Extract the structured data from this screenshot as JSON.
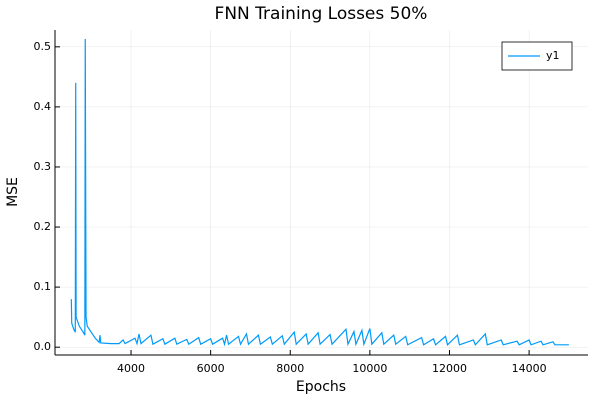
{
  "chart_data": {
    "type": "line",
    "title": "FNN Training Losses 50%",
    "xlabel": "Epochs",
    "ylabel": "MSE",
    "x": [
      2500,
      2510,
      2560,
      2600,
      2610,
      2620,
      2700,
      2800,
      2840,
      2850,
      2870,
      2900,
      3000,
      3100,
      3200,
      3220,
      3240,
      3500,
      3700,
      3800,
      3850,
      4100,
      4150,
      4200,
      4250,
      4500,
      4550,
      4800,
      4850,
      5100,
      5150,
      5400,
      5450,
      5700,
      5750,
      6000,
      6050,
      6300,
      6350,
      6400,
      6450,
      6700,
      6750,
      6900,
      6950,
      7200,
      7250,
      7500,
      7550,
      7800,
      7850,
      8100,
      8150,
      8400,
      8450,
      8700,
      8750,
      9000,
      9050,
      9400,
      9450,
      9600,
      9650,
      9800,
      9850,
      10000,
      10050,
      10300,
      10350,
      10600,
      10650,
      10900,
      10950,
      11300,
      11350,
      11600,
      11650,
      11900,
      11950,
      12200,
      12250,
      12600,
      12650,
      12900,
      12950,
      13300,
      13350,
      13700,
      13750,
      14000,
      14050,
      14300,
      14350,
      14600,
      14650,
      15000
    ],
    "series": [
      {
        "name": "y1",
        "color": "#009af9",
        "values": [
          0.08,
          0.04,
          0.03,
          0.025,
          0.44,
          0.05,
          0.035,
          0.025,
          0.02,
          0.513,
          0.05,
          0.035,
          0.025,
          0.015,
          0.008,
          0.02,
          0.007,
          0.006,
          0.006,
          0.012,
          0.006,
          0.015,
          0.006,
          0.022,
          0.006,
          0.02,
          0.005,
          0.014,
          0.005,
          0.015,
          0.005,
          0.013,
          0.005,
          0.016,
          0.005,
          0.014,
          0.005,
          0.015,
          0.005,
          0.02,
          0.005,
          0.018,
          0.005,
          0.022,
          0.005,
          0.02,
          0.005,
          0.017,
          0.005,
          0.019,
          0.005,
          0.025,
          0.005,
          0.022,
          0.005,
          0.024,
          0.005,
          0.021,
          0.005,
          0.03,
          0.005,
          0.026,
          0.005,
          0.028,
          0.005,
          0.031,
          0.005,
          0.024,
          0.005,
          0.02,
          0.005,
          0.018,
          0.004,
          0.016,
          0.004,
          0.014,
          0.004,
          0.018,
          0.004,
          0.02,
          0.004,
          0.012,
          0.004,
          0.022,
          0.004,
          0.012,
          0.004,
          0.01,
          0.004,
          0.012,
          0.004,
          0.01,
          0.004,
          0.009,
          0.004,
          0.004
        ]
      }
    ],
    "xlim": [
      2090,
      15480
    ],
    "ylim": [
      -0.013,
      0.528
    ],
    "xticks": [
      4000,
      6000,
      8000,
      10000,
      12000,
      14000
    ],
    "yticks": [
      {
        "value": 0,
        "label": "0.0"
      },
      0.1,
      0.2,
      0.3,
      0.4,
      0.5
    ],
    "grid": true,
    "legend": "top-right"
  }
}
